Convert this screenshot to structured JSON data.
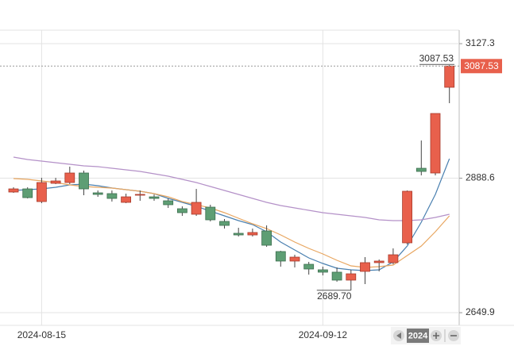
{
  "chart_data": {
    "type": "candlestick",
    "categories": [
      null,
      null,
      "2024-08-15",
      null,
      null,
      null,
      null,
      null,
      null,
      null,
      null,
      null,
      null,
      null,
      null,
      null,
      null,
      null,
      null,
      null,
      null,
      null,
      "2024-09-12",
      null,
      null,
      null,
      null,
      null,
      null,
      null,
      null,
      null
    ],
    "open": [
      2864.0,
      2869.6,
      2847.1,
      2879.5,
      2880.9,
      2897.8,
      2862.6,
      2861.2,
      2845.7,
      2858.4,
      2855.5,
      2848.5,
      2834.4,
      2824.6,
      2837.2,
      2811.9,
      2790.8,
      2787.9,
      2795.0,
      2758.4,
      2741.5,
      2735.8,
      2726.0,
      2721.8,
      2707.7,
      2723.2,
      2738.7,
      2738.7,
      2773.9,
      2906.2,
      2897.8,
      3049.9
    ],
    "close": [
      2869.6,
      2854.1,
      2880.9,
      2883.7,
      2897.8,
      2869.6,
      2859.8,
      2852.7,
      2855.5,
      2859.8,
      2852.7,
      2841.5,
      2827.4,
      2845.7,
      2814.7,
      2804.8,
      2787.9,
      2792.2,
      2769.6,
      2741.5,
      2748.5,
      2727.4,
      2721.8,
      2707.7,
      2718.9,
      2738.7,
      2741.5,
      2752.7,
      2865.4,
      2900.6,
      3003.4,
      3087.53
    ],
    "high": [
      2872.4,
      2872.4,
      2889.3,
      2889.3,
      2909.1,
      2902.0,
      2866.8,
      2866.8,
      2861.2,
      2866.8,
      2859.8,
      2852.7,
      2838.6,
      2869.6,
      2841.5,
      2816.1,
      2800.6,
      2799.2,
      2804.8,
      2759.8,
      2752.7,
      2740.1,
      2731.6,
      2730.2,
      2726.0,
      2748.5,
      2744.3,
      2764.0,
      2866.8,
      2955.5,
      3003.4,
      3089.3
    ],
    "low": [
      2862.6,
      2852.7,
      2844.3,
      2878.1,
      2878.1,
      2858.4,
      2855.5,
      2847.1,
      2844.3,
      2848.5,
      2848.5,
      2835.8,
      2821.7,
      2821.7,
      2811.9,
      2799.2,
      2785.1,
      2785.1,
      2766.8,
      2731.6,
      2730.2,
      2717.5,
      2716.1,
      2704.9,
      2689.7,
      2700.6,
      2723.2,
      2735.8,
      2771.0,
      2893.6,
      2893.6,
      3021.7
    ],
    "up_color": "#e8604c",
    "down_color": "#5e9e74",
    "lines": [
      {
        "color": "#4a80b0",
        "values": [
          2866.8,
          2868.2,
          2869.6,
          2872.4,
          2876.7,
          2878.1,
          2875.3,
          2871.2,
          2868.2,
          2865.4,
          2861.2,
          2852.7,
          2845.7,
          2838.6,
          2830.2,
          2821.7,
          2813.3,
          2806.3,
          2793.6,
          2775.3,
          2761.2,
          2747.1,
          2737.2,
          2728.8,
          2726.0,
          2724.6,
          2726.0,
          2740.1,
          2768.2,
          2810.5,
          2859.8,
          2923.1
        ]
      },
      {
        "color": "#e8a660",
        "values": [
          2887.9,
          2886.5,
          2883.7,
          2880.9,
          2876.7,
          2873.9,
          2872.4,
          2871.0,
          2868.2,
          2865.4,
          2861.2,
          2855.5,
          2847.1,
          2841.5,
          2835.8,
          2827.4,
          2817.5,
          2807.7,
          2799.2,
          2787.9,
          2775.3,
          2764.0,
          2754.1,
          2742.9,
          2733.0,
          2730.2,
          2731.6,
          2734.4,
          2751.3,
          2768.2,
          2793.6,
          2821.7
        ]
      },
      {
        "color": "#b491c8",
        "values": [
          2926.0,
          2921.7,
          2918.9,
          2916.1,
          2913.3,
          2910.5,
          2909.1,
          2906.2,
          2903.4,
          2900.6,
          2896.4,
          2892.2,
          2886.5,
          2880.9,
          2873.9,
          2866.8,
          2859.8,
          2852.7,
          2845.7,
          2840.1,
          2835.8,
          2831.6,
          2827.4,
          2824.6,
          2821.7,
          2818.9,
          2814.7,
          2813.3,
          2813.3,
          2814.7,
          2818.9,
          2824.6
        ]
      }
    ],
    "ylim": [
      2627.4,
      3151.3
    ],
    "yticks": [
      2649.9,
      2888.6,
      3127.3
    ],
    "grid": true,
    "low_annotation": {
      "value": 2689.7,
      "label": "2689.70"
    },
    "scroll_label": "2024"
  }
}
